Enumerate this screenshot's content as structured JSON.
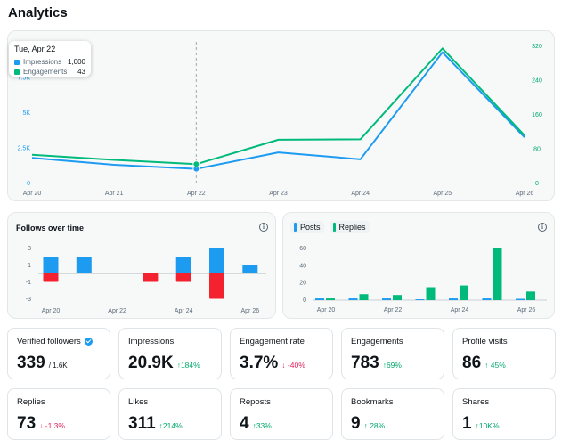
{
  "page": {
    "title": "Analytics"
  },
  "main_chart": {
    "tooltip": {
      "date": "Tue, Apr 22",
      "rows": [
        {
          "label": "Impressions",
          "value": "1,000",
          "color": "#1d9bf0"
        },
        {
          "label": "Engagements",
          "value": "43",
          "color": "#00ba7c"
        }
      ]
    },
    "chart_data": {
      "type": "line",
      "x": [
        "Apr 20",
        "Apr 21",
        "Apr 22",
        "Apr 23",
        "Apr 24",
        "Apr 25",
        "Apr 26"
      ],
      "left_ticks": [
        "0",
        "2.5K",
        "5K",
        "7.5K"
      ],
      "right_ticks": [
        "0",
        "80",
        "160",
        "240",
        "320"
      ],
      "series": [
        {
          "name": "Impressions",
          "axis": "left",
          "color": "#1d9bf0",
          "values": [
            1800,
            1300,
            1000,
            2200,
            1700,
            9500,
            3300
          ]
        },
        {
          "name": "Engagements",
          "axis": "right",
          "color": "#00ba7c",
          "values": [
            65,
            53,
            43,
            100,
            101,
            313,
            110
          ]
        }
      ],
      "left_range": [
        0,
        10000
      ],
      "right_range": [
        0,
        320
      ],
      "highlighted": "Apr 22"
    }
  },
  "follows_chart": {
    "title": "Follows over time",
    "chart_data": {
      "type": "bar",
      "categories": [
        "Apr 20",
        "Apr 21",
        "Apr 22",
        "Apr 23",
        "Apr 24",
        "Apr 25",
        "Apr 26"
      ],
      "series": [
        {
          "name": "Follows",
          "color": "#1d9bf0",
          "values": [
            2,
            2,
            0,
            0,
            2,
            3,
            1
          ]
        },
        {
          "name": "Unfollows",
          "color": "#f4212e",
          "values": [
            -1,
            0,
            0,
            -1,
            -1,
            -3,
            0
          ]
        }
      ],
      "y_ticks": [
        "3",
        "1",
        "-1",
        "-3"
      ],
      "x_labels": [
        "Apr 20",
        "Apr 22",
        "Apr 24",
        "Apr 26"
      ],
      "ylim": [
        -3,
        3
      ]
    }
  },
  "posts_chart": {
    "legend": [
      {
        "label": "Posts",
        "color": "#1d9bf0"
      },
      {
        "label": "Replies",
        "color": "#00ba7c"
      }
    ],
    "chart_data": {
      "type": "bar",
      "categories": [
        "Apr 20",
        "Apr 21",
        "Apr 22",
        "Apr 23",
        "Apr 24",
        "Apr 25",
        "Apr 26"
      ],
      "series": [
        {
          "name": "Posts",
          "color": "#1d9bf0",
          "values": [
            2,
            2,
            2,
            1,
            2,
            2,
            0
          ]
        },
        {
          "name": "Replies",
          "color": "#00ba7c",
          "values": [
            2,
            7,
            6,
            15,
            17,
            60,
            10
          ]
        }
      ],
      "y_ticks": [
        "0",
        "20",
        "40",
        "60"
      ],
      "x_labels": [
        "Apr 20",
        "Apr 22",
        "Apr 24",
        "Apr 26"
      ],
      "ylim": [
        0,
        65
      ]
    }
  },
  "cards": [
    {
      "label": "Verified followers",
      "value": "339",
      "sub": "/ 1.6K",
      "delta": "",
      "delta_dir": "none",
      "verified": true
    },
    {
      "label": "Impressions",
      "value": "20.9K",
      "sub": "",
      "delta": "↑184%",
      "delta_dir": "up"
    },
    {
      "label": "Engagement rate",
      "value": "3.7%",
      "sub": "",
      "delta": "↓ -40%",
      "delta_dir": "down"
    },
    {
      "label": "Engagements",
      "value": "783",
      "sub": "",
      "delta": "↑69%",
      "delta_dir": "up"
    },
    {
      "label": "Profile visits",
      "value": "86",
      "sub": "",
      "delta": "↑ 45%",
      "delta_dir": "up"
    },
    {
      "label": "Replies",
      "value": "73",
      "sub": "",
      "delta": "↓ -1.3%",
      "delta_dir": "down"
    },
    {
      "label": "Likes",
      "value": "311",
      "sub": "",
      "delta": "↑214%",
      "delta_dir": "up"
    },
    {
      "label": "Reposts",
      "value": "4",
      "sub": "",
      "delta": "↑33%",
      "delta_dir": "up"
    },
    {
      "label": "Bookmarks",
      "value": "9",
      "sub": "",
      "delta": "↑ 28%",
      "delta_dir": "up"
    },
    {
      "label": "Shares",
      "value": "1",
      "sub": "",
      "delta": "↑10K%",
      "delta_dir": "up"
    }
  ]
}
